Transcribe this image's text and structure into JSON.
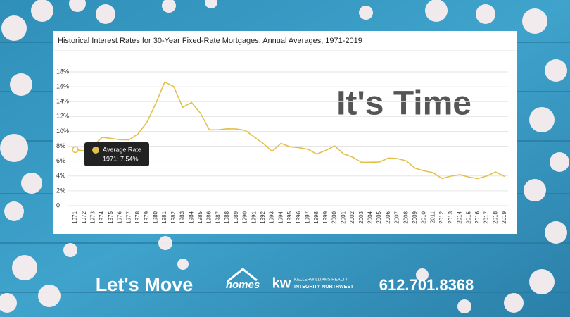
{
  "chart_data": {
    "type": "line",
    "title": "Historical Interest Rates for 30-Year Fixed-Rate Mortgages: Annual Averages, 1971-2019",
    "categories": [
      "1971",
      "1972",
      "1973",
      "1974",
      "1975",
      "1976",
      "1977",
      "1978",
      "1979",
      "1980",
      "1981",
      "1982",
      "1983",
      "1984",
      "1985",
      "1986",
      "1987",
      "1988",
      "1989",
      "1990",
      "1991",
      "1992",
      "1993",
      "1994",
      "1995",
      "1996",
      "1997",
      "1998",
      "1999",
      "2000",
      "2001",
      "2002",
      "2003",
      "2004",
      "2005",
      "2006",
      "2007",
      "2008",
      "2009",
      "2010",
      "2011",
      "2012",
      "2013",
      "2014",
      "2015",
      "2016",
      "2017",
      "2018",
      "2019"
    ],
    "series": [
      {
        "name": "Average Rate",
        "color": "#e3c04a",
        "values": [
          7.54,
          7.38,
          8.04,
          9.19,
          9.05,
          8.87,
          8.85,
          9.64,
          11.2,
          13.74,
          16.63,
          16.04,
          13.24,
          13.88,
          12.43,
          10.19,
          10.21,
          10.34,
          10.32,
          10.13,
          9.25,
          8.39,
          7.31,
          8.38,
          7.93,
          7.81,
          7.6,
          6.94,
          7.44,
          8.05,
          6.97,
          6.54,
          5.83,
          5.84,
          5.87,
          6.41,
          6.34,
          6.03,
          5.04,
          4.69,
          4.45,
          3.66,
          3.98,
          4.17,
          3.85,
          3.65,
          3.99,
          4.54,
          3.94
        ]
      }
    ],
    "ylim": [
      0,
      18
    ],
    "yticks": [
      0,
      {
        "value": 2,
        "label": "2%"
      },
      {
        "value": 4,
        "label": "4%"
      },
      {
        "value": 6,
        "label": "6%"
      },
      {
        "value": 8,
        "label": "8%"
      },
      {
        "value": 10,
        "label": "10%"
      },
      {
        "value": 12,
        "label": "12%"
      },
      {
        "value": 14,
        "label": "14%"
      },
      {
        "value": 16,
        "label": "16%"
      },
      {
        "value": 18,
        "label": "18%"
      }
    ],
    "grid": true,
    "tooltip": {
      "title": "Average Rate",
      "text": "1971: 7.54%"
    }
  },
  "overlay": {
    "headline": "It's Time",
    "slogan": "Let's Move",
    "phone": "612.701.8368",
    "logo": {
      "brand": "homes",
      "kw": "kw",
      "company": "KELLERWILLIAMS REALTY",
      "office": "INTEGRITY NORTHWEST"
    }
  }
}
